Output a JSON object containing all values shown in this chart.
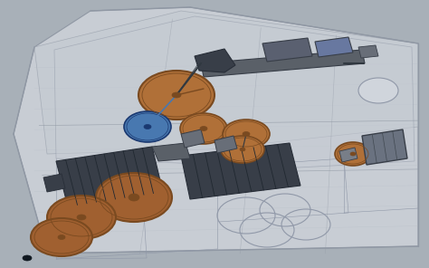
{
  "figsize": [
    4.74,
    2.96
  ],
  "dpi": 100,
  "bg_outer": "#a8b0b8",
  "bg_inner": "#c8cdd4",
  "blueprint_line": "#9098a4",
  "blueprint_line2": "#b0b8c2",
  "tank_brown": "#b07038",
  "tank_brown_dark": "#7a4a20",
  "tank_brown2": "#a06030",
  "tank_blue": "#4878b0",
  "tank_blue_dark": "#1a3870",
  "dark_equip": "#383e48",
  "dark_equip2": "#282e38",
  "pipe_gray": "#5a6068",
  "struct_gray": "#686e78",
  "light_gray": "#c0c8d0",
  "line_dark": "#303840",
  "box_gray": "#5a6070",
  "box_gray2": "#6878a0"
}
